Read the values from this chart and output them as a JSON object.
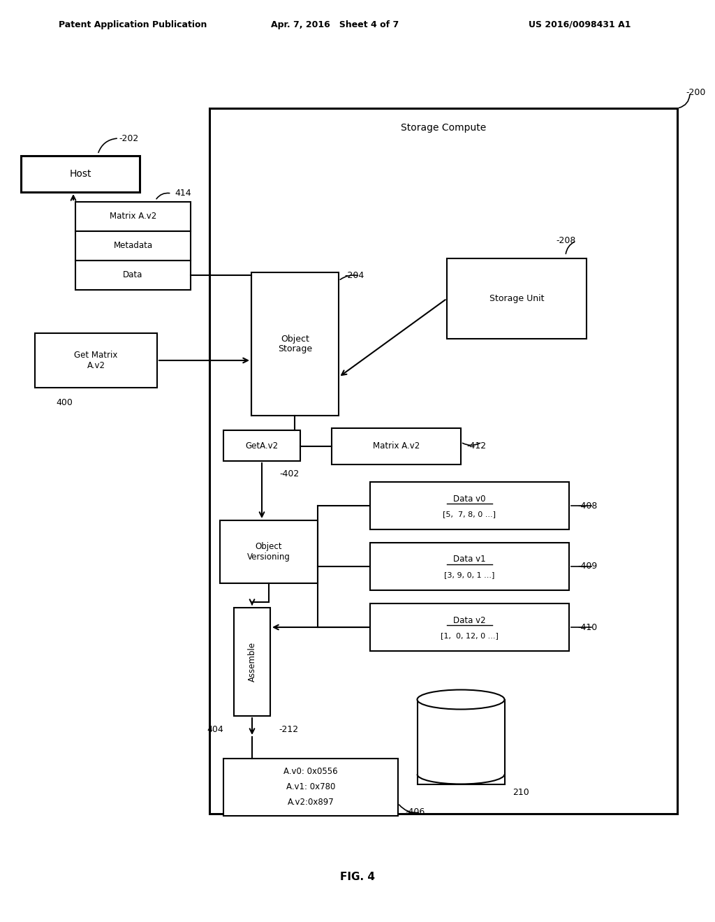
{
  "bg_color": "#ffffff",
  "header_left": "Patent Application Publication",
  "header_mid": "Apr. 7, 2016   Sheet 4 of 7",
  "header_right": "US 2016/0098431 A1",
  "fig_label": "FIG. 4",
  "storage_compute_label": "Storage Compute",
  "ref_200": "-200",
  "ref_202": "-202",
  "ref_204": "-204",
  "ref_208": "-208",
  "ref_210": "210",
  "ref_212": "-212",
  "ref_400": "400",
  "ref_402": "-402",
  "ref_404": "404",
  "ref_406": "-406",
  "ref_408": "-408",
  "ref_409": "-409",
  "ref_410": "-410",
  "ref_412": "-412",
  "ref_414": "414",
  "host_label": "Host",
  "matrix_av2_label": "Matrix A.v2",
  "metadata_label": "Metadata",
  "data_label": "Data",
  "get_matrix_label": "Get Matrix\nA.v2",
  "object_storage_label": "Object\nStorage",
  "storage_unit_label": "Storage Unit",
  "geta_v2_label": "GetA.v2",
  "matrix_av2_2_label": "Matrix A.v2",
  "object_versioning_label": "Object\nVersioning",
  "assemble_label": "Assemble",
  "data_v0_title": "Data v0",
  "data_v0_vals": "[5,  7, 8, 0 ...]",
  "data_v1_title": "Data v1",
  "data_v1_vals": "[3, 9, 0, 1 ...]",
  "data_v2_title": "Data v2",
  "data_v2_vals": "[1,  0, 12, 0 ...]",
  "hash_line1": "A.v0: 0x0556",
  "hash_line2": "A.v1: 0x780",
  "hash_line3": "A.v2:0x897"
}
